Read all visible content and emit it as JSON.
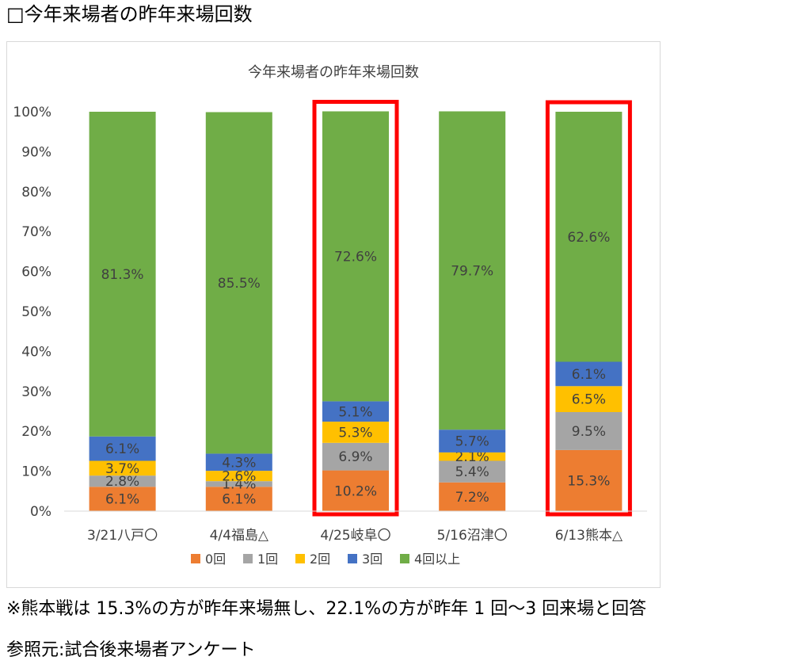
{
  "heading": "□今年来場者の昨年来場回数",
  "footnote": "※熊本戦は 15.3%の方が昨年来場無し、22.1%の方が昨年 1 回～3 回来場と回答",
  "source": "参照元:試合後来場者アンケート",
  "chart_data": {
    "type": "bar",
    "stacked": true,
    "title": "今年来場者の昨年来場回数",
    "categories": [
      "3/21八戸〇",
      "4/4福島△",
      "4/25岐阜〇",
      "5/16沼津〇",
      "6/13熊本△"
    ],
    "series": [
      {
        "name": "0回",
        "color": "#ED7D31",
        "values": [
          6.1,
          6.1,
          10.2,
          7.2,
          15.3
        ],
        "labels": [
          "6.1%",
          "6.1%",
          "10.2%",
          "7.2%",
          "15.3%"
        ]
      },
      {
        "name": "1回",
        "color": "#A5A5A5",
        "values": [
          2.8,
          1.4,
          6.9,
          5.4,
          9.5
        ],
        "labels": [
          "2.8%",
          "1.4%",
          "6.9%",
          "5.4%",
          "9.5%"
        ]
      },
      {
        "name": "2回",
        "color": "#FFC000",
        "values": [
          3.7,
          2.6,
          5.3,
          2.1,
          6.5
        ],
        "labels": [
          "3.7%",
          "2.6%",
          "5.3%",
          "2.1%",
          "6.5%"
        ]
      },
      {
        "name": "3回",
        "color": "#4472C4",
        "values": [
          6.1,
          4.3,
          5.1,
          5.7,
          6.1
        ],
        "labels": [
          "6.1%",
          "4.3%",
          "5.1%",
          "5.7%",
          "6.1%"
        ]
      },
      {
        "name": "4回以上",
        "color": "#70AD47",
        "values": [
          81.3,
          85.5,
          72.6,
          79.7,
          62.6
        ],
        "labels": [
          "81.3%",
          "85.5%",
          "72.6%",
          "79.7%",
          "62.6%"
        ]
      }
    ],
    "ylim": [
      0,
      100
    ],
    "yticks": [
      "0%",
      "10%",
      "20%",
      "30%",
      "40%",
      "50%",
      "60%",
      "70%",
      "80%",
      "90%",
      "100%"
    ],
    "legend_position": "bottom",
    "grid": false,
    "highlighted_categories": [
      "4/25岐阜〇",
      "6/13熊本△"
    ],
    "highlight_color": "#FF0000"
  }
}
